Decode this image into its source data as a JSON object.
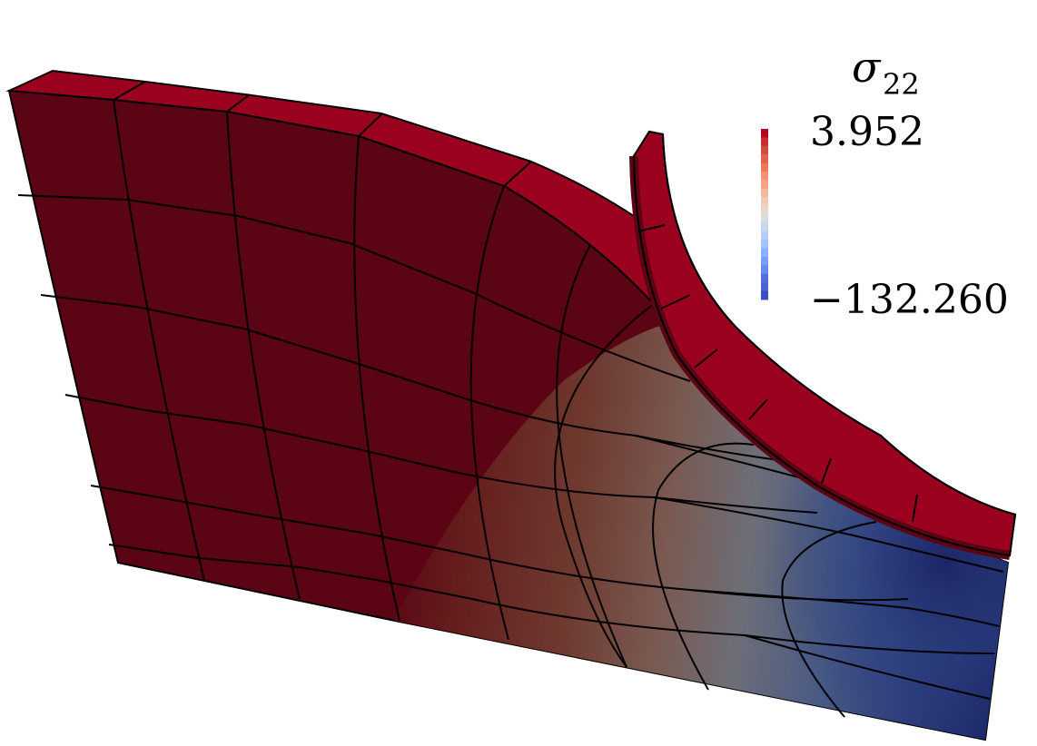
{
  "legend": {
    "title_symbol": "σ",
    "title_subscript": "22",
    "max_label": "3.952",
    "min_label": "−132.260",
    "colors": [
      "#b40426",
      "#c32e31",
      "#d24b40",
      "#df634e",
      "#e9785d",
      "#f29274",
      "#f6a385",
      "#f5b89d",
      "#f2cbb7",
      "#e8d6cc",
      "#d9dce1",
      "#c8d7ef",
      "#b6cdfa",
      "#a3c2fe",
      "#8db0fe",
      "#7a9df8",
      "#6788ee",
      "#536edd",
      "#4b63d3",
      "#3b4cc0"
    ]
  },
  "colors": {
    "high": "#5a0414",
    "edge_face": "#9a0220",
    "low": "#1c2868",
    "mesh_line": "#000000"
  }
}
